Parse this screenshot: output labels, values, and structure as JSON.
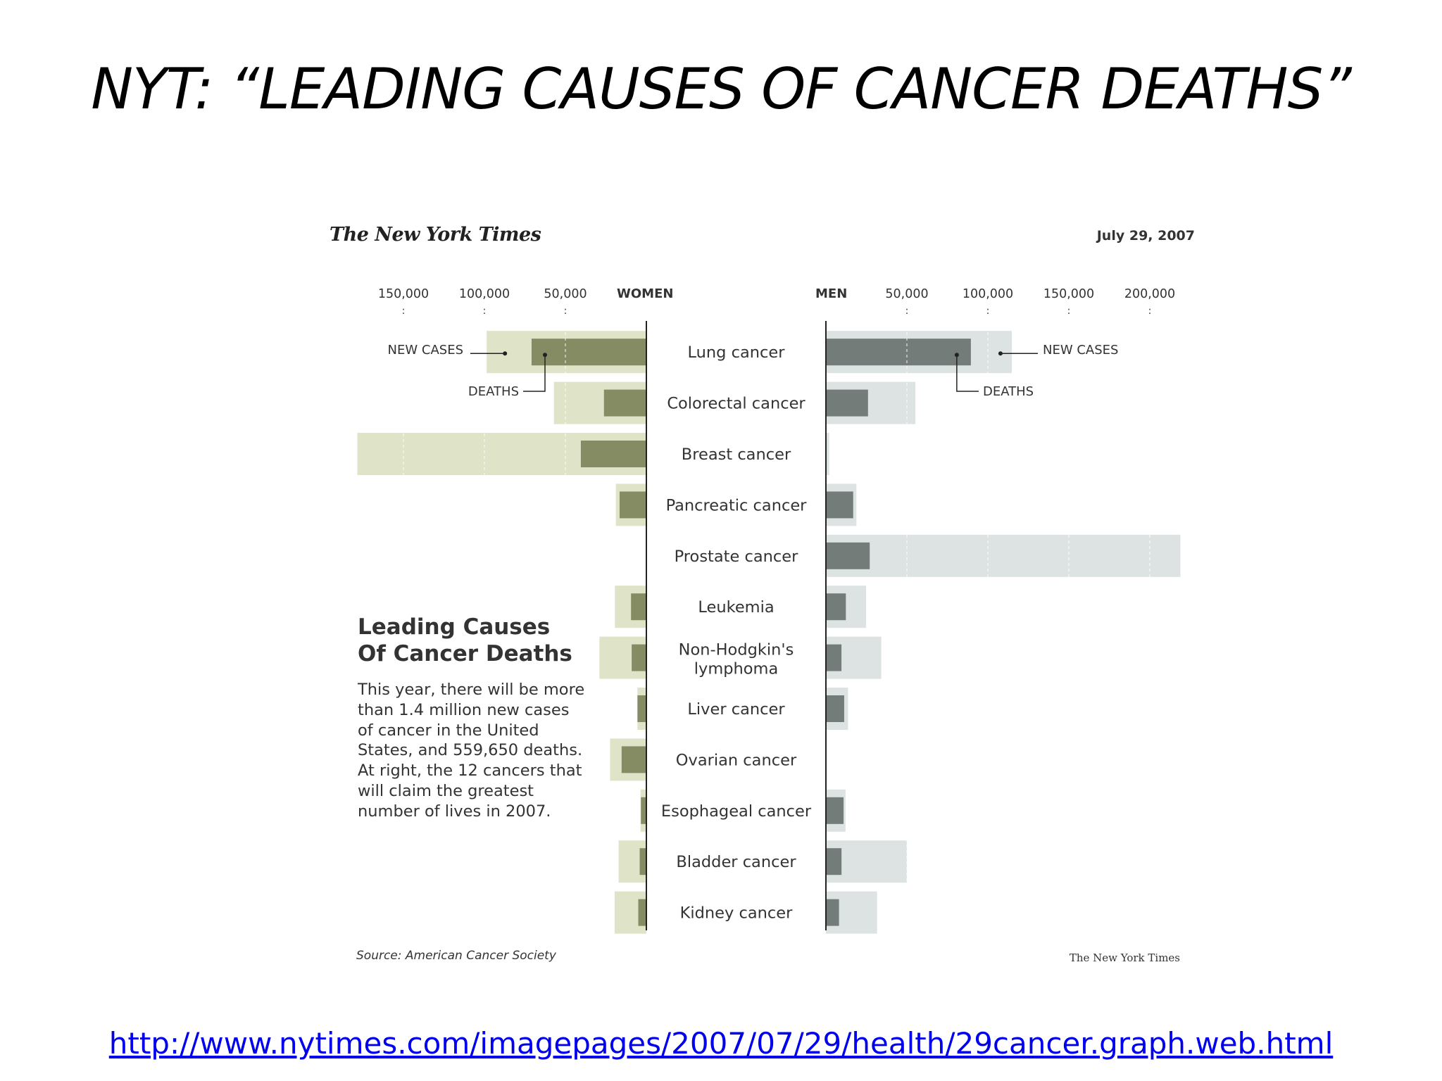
{
  "slide": {
    "title": "NYT: “LEADING CAUSES OF CANCER DEATHS”",
    "url": "http://www.nytimes.com/imagepages/2007/07/29/health/29cancer.graph.web.html"
  },
  "figure": {
    "publisher": "The New York Times",
    "date": "July 29, 2007",
    "heading_lines": [
      "Leading Causes",
      "Of Cancer Deaths"
    ],
    "description_lines": [
      "This year, there will be more",
      "than 1.4 million new cases",
      "of cancer in the United",
      "States, and 559,650 deaths.",
      "At right, the 12 cancers that",
      "will claim the greatest",
      "number of lives in 2007."
    ],
    "source": "Source: American Cancer Society",
    "credit": "The New York Times"
  },
  "colors": {
    "women_cases": "#dfe3c7",
    "women_deaths": "#858b63",
    "men_cases": "#dde3e2",
    "men_deaths": "#737c78",
    "axis_line": "#222222",
    "text": "#333333"
  },
  "chart_data": {
    "type": "bar",
    "layout": "back-to-back horizontal bars (women left, men right), deaths overlaid on new cases",
    "women_axis": {
      "label": "WOMEN",
      "ticks": [
        50000,
        100000,
        150000
      ],
      "tick_labels": [
        "50,000",
        "100,000",
        "150,000"
      ]
    },
    "men_axis": {
      "label": "MEN",
      "ticks": [
        50000,
        100000,
        150000,
        200000
      ],
      "tick_labels": [
        "50,000",
        "100,000",
        "150,000",
        "200,000"
      ]
    },
    "xlim": [
      0,
      220000
    ],
    "categories": [
      [
        "Lung cancer"
      ],
      [
        "Colorectal cancer"
      ],
      [
        "Breast cancer"
      ],
      [
        "Pancreatic cancer"
      ],
      [
        "Prostate cancer"
      ],
      [
        "Leukemia"
      ],
      [
        "Non-Hodgkin's",
        "lymphoma"
      ],
      [
        "Liver cancer"
      ],
      [
        "Ovarian cancer"
      ],
      [
        "Esophageal cancer"
      ],
      [
        "Bladder cancer"
      ],
      [
        "Kidney cancer"
      ]
    ],
    "series": [
      {
        "name": "NEW CASES",
        "group": "women",
        "values": [
          98620,
          57050,
          178480,
          18830,
          0,
          19440,
          28990,
          5510,
          22430,
          3610,
          17120,
          19600
        ]
      },
      {
        "name": "DEATHS",
        "group": "women",
        "values": [
          70880,
          26180,
          40460,
          16530,
          0,
          9470,
          9060,
          5500,
          15280,
          3380,
          4120,
          5000
        ]
      },
      {
        "name": "NEW CASES",
        "group": "men",
        "values": [
          114760,
          55290,
          2030,
          18830,
          218890,
          24800,
          34200,
          13650,
          0,
          12130,
          50040,
          31590
        ]
      },
      {
        "name": "DEATHS",
        "group": "men",
        "values": [
          89510,
          26000,
          450,
          16840,
          27050,
          12320,
          9600,
          11280,
          0,
          10900,
          9630,
          8080
        ]
      }
    ],
    "annotations": [
      {
        "text": "NEW CASES",
        "target": "women / Lung cancer / new cases"
      },
      {
        "text": "DEATHS",
        "target": "women / Lung cancer / deaths"
      },
      {
        "text": "NEW CASES",
        "target": "men / Lung cancer / new cases"
      },
      {
        "text": "DEATHS",
        "target": "men / Lung cancer / deaths"
      }
    ]
  }
}
